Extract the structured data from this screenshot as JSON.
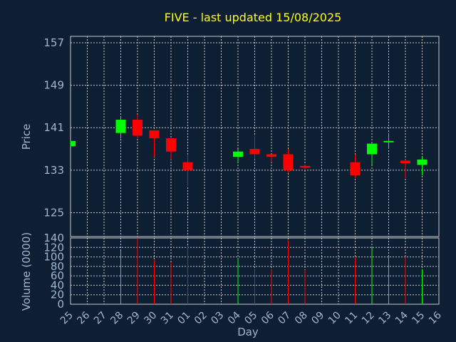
{
  "chart_data": {
    "type": "candlestick",
    "title": "FIVE - last updated 15/08/2025",
    "xlabel": "Day",
    "price_panel": {
      "ylabel": "Price",
      "yticks": [
        125,
        133,
        141,
        149,
        157
      ],
      "ylim": [
        120.5,
        158.2
      ]
    },
    "volume_panel": {
      "ylabel": "Volume (0000)",
      "yticks": [
        0,
        20,
        40,
        60,
        80,
        100,
        120,
        140
      ],
      "ylim": [
        0,
        140
      ]
    },
    "days": [
      "25",
      "26",
      "27",
      "28",
      "29",
      "30",
      "31",
      "01",
      "02",
      "03",
      "04",
      "05",
      "06",
      "07",
      "08",
      "09",
      "10",
      "11",
      "12",
      "13",
      "14",
      "15",
      "16"
    ],
    "colors": {
      "up": "#00ff00",
      "down": "#ff0000",
      "flat": "#00ff00"
    },
    "candles": [
      {
        "day": "25",
        "open": 137.5,
        "close": 138.5,
        "high": 138.5,
        "low": 137.5,
        "volume": 0
      },
      {
        "day": "28",
        "open": 140.0,
        "close": 142.5,
        "high": 143.0,
        "low": 139.0,
        "volume": 113
      },
      {
        "day": "29",
        "open": 142.5,
        "close": 139.5,
        "high": 143.5,
        "low": 139.0,
        "volume": 140
      },
      {
        "day": "30",
        "open": 140.5,
        "close": 139.0,
        "high": 140.5,
        "low": 135.5,
        "volume": 93
      },
      {
        "day": "31",
        "open": 139.0,
        "close": 136.5,
        "high": 139.0,
        "low": 135.0,
        "volume": 89
      },
      {
        "day": "01",
        "open": 134.5,
        "close": 133.0,
        "high": 136.0,
        "low": 130.0,
        "volume": 125
      },
      {
        "day": "04",
        "open": 135.5,
        "close": 136.5,
        "high": 137.0,
        "low": 134.5,
        "volume": 97
      },
      {
        "day": "05",
        "open": 137.0,
        "close": 136.0,
        "high": 139.5,
        "low": 135.0,
        "volume": 75
      },
      {
        "day": "06",
        "open": 136.0,
        "close": 135.5,
        "high": 136.0,
        "low": 134.5,
        "volume": 74
      },
      {
        "day": "07",
        "open": 136.0,
        "close": 133.0,
        "high": 137.0,
        "low": 132.5,
        "volume": 135
      },
      {
        "day": "08",
        "open": 133.8,
        "close": 133.5,
        "high": 134.0,
        "low": 133.0,
        "volume": 72
      },
      {
        "day": "11",
        "open": 134.5,
        "close": 132.0,
        "high": 136.0,
        "low": 131.5,
        "volume": 98
      },
      {
        "day": "12",
        "open": 136.0,
        "close": 138.0,
        "high": 138.0,
        "low": 134.0,
        "volume": 120
      },
      {
        "day": "13",
        "open": 138.5,
        "close": 138.5,
        "high": 140.0,
        "low": 137.0,
        "volume": 100
      },
      {
        "day": "14",
        "open": 134.8,
        "close": 134.3,
        "high": 135.0,
        "low": 131.5,
        "volume": 101
      },
      {
        "day": "15",
        "open": 134.0,
        "close": 135.0,
        "high": 135.5,
        "low": 132.0,
        "volume": 74
      }
    ]
  }
}
